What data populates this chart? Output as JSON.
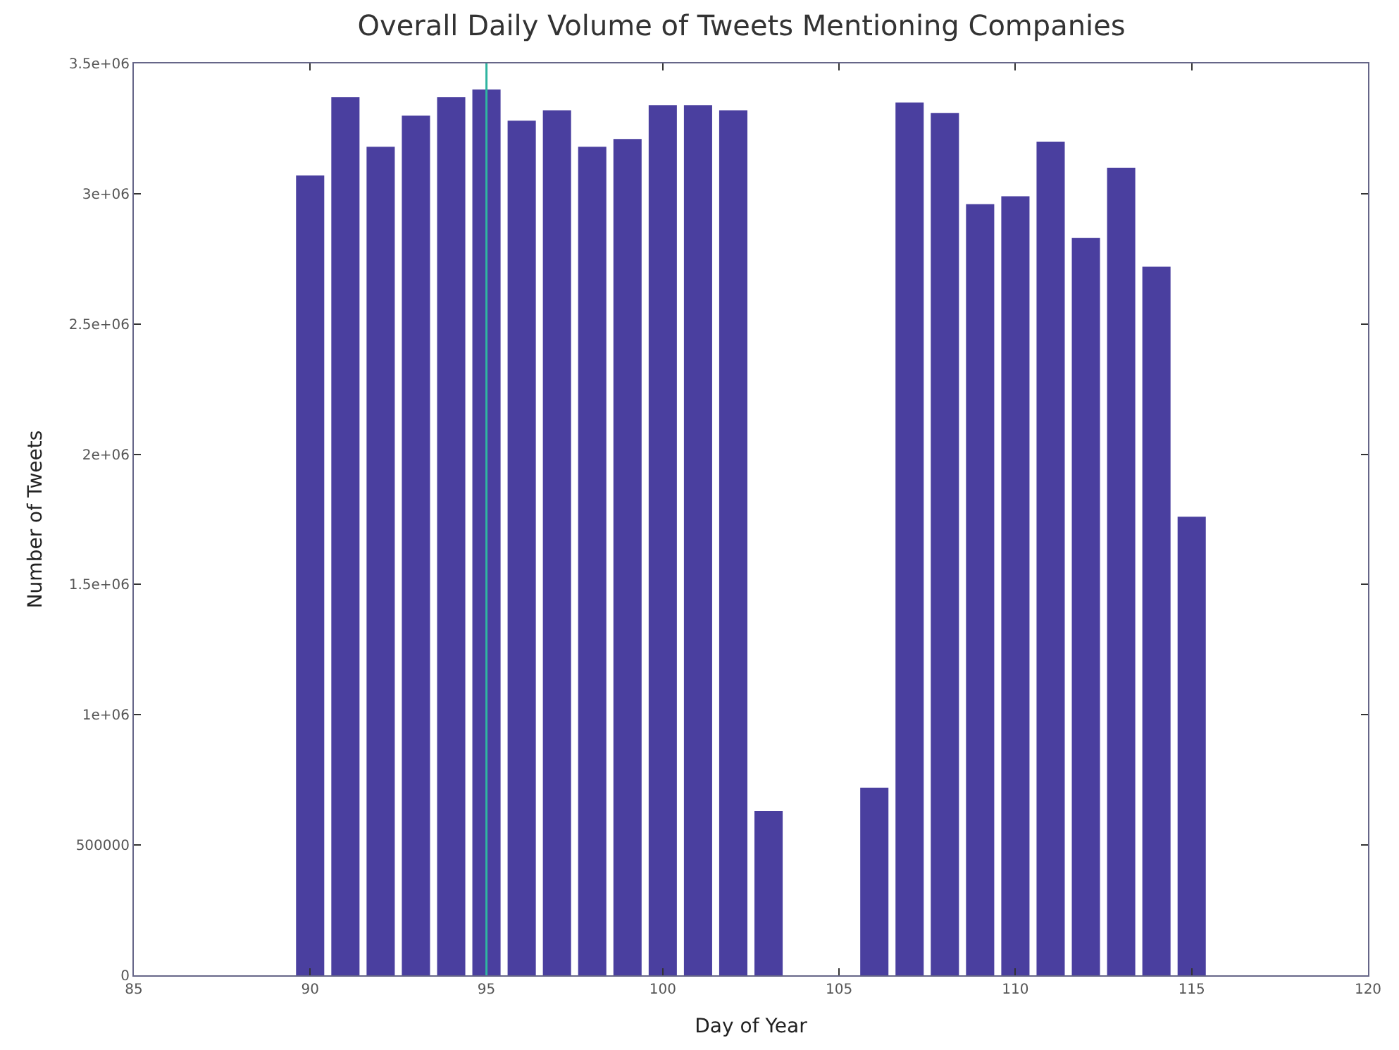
{
  "chart_data": {
    "type": "bar",
    "title": "Overall Daily Volume of Tweets Mentioning Companies",
    "xlabel": "Day of Year",
    "ylabel": "Number of Tweets",
    "x": [
      90,
      91,
      92,
      93,
      94,
      95,
      96,
      97,
      98,
      99,
      100,
      101,
      102,
      103,
      106,
      107,
      108,
      109,
      110,
      111,
      112,
      113,
      114,
      115
    ],
    "values": [
      3070000,
      3370000,
      3180000,
      3300000,
      3370000,
      3400000,
      3280000,
      3320000,
      3180000,
      3210000,
      3340000,
      3340000,
      3320000,
      630000,
      720000,
      3350000,
      3310000,
      2960000,
      2990000,
      3200000,
      2830000,
      3100000,
      2720000,
      1760000
    ],
    "color": "#4a3f9f",
    "xlim": [
      85,
      120
    ],
    "xticks": [
      85,
      90,
      95,
      100,
      105,
      110,
      115,
      120
    ],
    "ylim": [
      0,
      3500000
    ],
    "yticks": [
      0,
      500000,
      {
        "value": 1000000,
        "label": "1e+06"
      },
      {
        "value": 1500000,
        "label": "1.5e+06"
      },
      {
        "value": 2000000,
        "label": "2e+06"
      },
      {
        "value": 2500000,
        "label": "2.5e+06"
      },
      {
        "value": 3000000,
        "label": "3e+06"
      },
      {
        "value": 3500000,
        "label": "3.5e+06"
      }
    ],
    "ref_lines": [
      {
        "axis": "x",
        "value": 95,
        "color": "#2fb5a0"
      }
    ]
  }
}
